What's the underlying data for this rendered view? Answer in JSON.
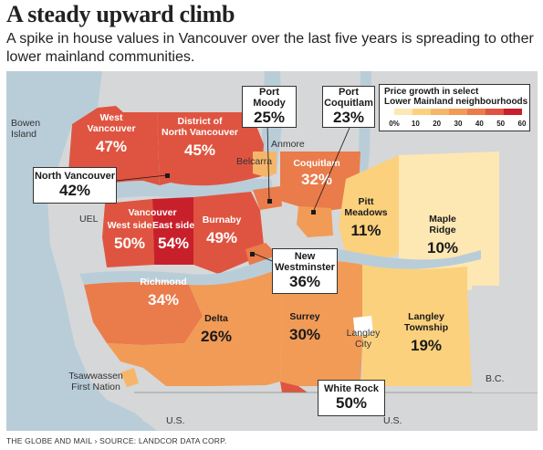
{
  "title": "A steady upward climb",
  "subtitle": "A spike in house values in Vancouver over the last five years is spreading to other lower mainland communities.",
  "legend": {
    "title_line1": "Price growth in select",
    "title_line2": "Lower Mainland neighbourhoods",
    "ticks": [
      "0%",
      "10",
      "20",
      "30",
      "40",
      "50",
      "60"
    ],
    "colors": [
      "#fde7b3",
      "#fbd17d",
      "#f6b66a",
      "#f19b57",
      "#ea7b4b",
      "#df5440",
      "#c8202b"
    ]
  },
  "regions": {
    "west_vancouver": {
      "name_l1": "West",
      "name_l2": "Vancouver",
      "value": "47%"
    },
    "district_north_vancouver": {
      "name_l1": "District of",
      "name_l2": "North Vancouver",
      "value": "45%"
    },
    "coquitlam": {
      "name": "Coquitlam",
      "value": "32%"
    },
    "pitt_meadows": {
      "name_l1": "Pitt",
      "name_l2": "Meadows",
      "value": "11%"
    },
    "maple_ridge": {
      "name_l1": "Maple",
      "name_l2": "Ridge",
      "value": "10%"
    },
    "vancouver": {
      "name": "Vancouver",
      "west_label": "West side",
      "east_label": "East side",
      "west_value": "50%",
      "east_value": "54%"
    },
    "burnaby": {
      "name": "Burnaby",
      "value": "49%"
    },
    "richmond": {
      "name": "Richmond",
      "value": "34%"
    },
    "delta": {
      "name": "Delta",
      "value": "26%"
    },
    "surrey": {
      "name": "Surrey",
      "value": "30%"
    },
    "langley_township": {
      "name_l1": "Langley",
      "name_l2": "Township",
      "value": "19%"
    }
  },
  "callouts": {
    "port_moody": {
      "name_l1": "Port",
      "name_l2": "Moody",
      "value": "25%"
    },
    "port_coquitlam": {
      "name_l1": "Port",
      "name_l2": "Coquitlam",
      "value": "23%"
    },
    "north_vancouver": {
      "name": "North Vancouver",
      "value": "42%"
    },
    "new_westminster": {
      "name_l1": "New",
      "name_l2": "Westminster",
      "value": "36%"
    },
    "white_rock": {
      "name": "White Rock",
      "value": "50%"
    }
  },
  "places": {
    "bowen_l1": "Bowen",
    "bowen_l2": "Island",
    "anmore": "Anmore",
    "belcarra": "Belcarra",
    "uel": "UEL",
    "langley_city_l1": "Langley",
    "langley_city_l2": "City",
    "tsawwassen_l1": "Tsawwassen",
    "tsawwassen_l2": "First Nation",
    "bc": "B.C.",
    "us_left": "U.S.",
    "us_right": "U.S."
  },
  "footer": {
    "publisher": "THE GLOBE AND MAIL",
    "separator": "›",
    "source": "SOURCE: LANDCOR DATA CORP."
  }
}
